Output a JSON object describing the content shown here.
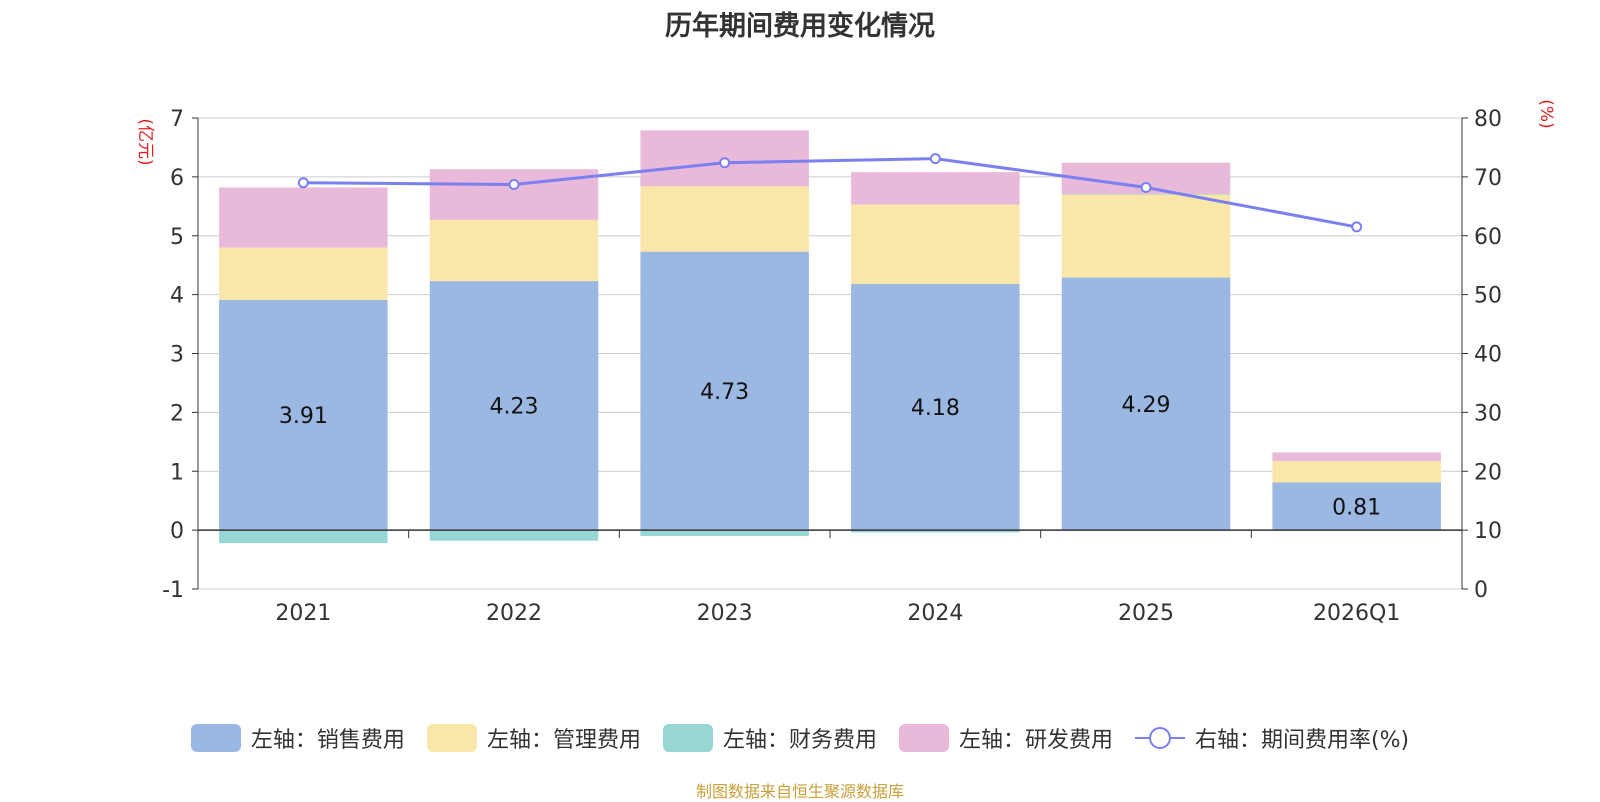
{
  "chart_data": {
    "type": "bar",
    "title": "历年期间费用变化情况",
    "categories": [
      "2021",
      "2022",
      "2023",
      "2024",
      "2025",
      "2026Q1"
    ],
    "left_axis": {
      "label": "(亿元)",
      "ylim": [
        -1,
        7
      ],
      "ticks": [
        -1,
        0,
        1,
        2,
        3,
        4,
        5,
        6,
        7
      ]
    },
    "right_axis": {
      "label": "(%)",
      "ylim": [
        0,
        80
      ],
      "ticks": [
        0,
        10,
        20,
        30,
        40,
        50,
        60,
        70,
        80
      ]
    },
    "series": [
      {
        "name": "销售费用",
        "legend": "左轴：销售费用",
        "axis": "left",
        "kind": "bar",
        "color": "#9bb8e2",
        "values": [
          3.91,
          4.23,
          4.73,
          4.18,
          4.29,
          0.81
        ],
        "show_labels": true,
        "labels": [
          "3.91",
          "4.23",
          "4.73",
          "4.18",
          "4.29",
          "0.81"
        ]
      },
      {
        "name": "管理费用",
        "legend": "左轴：管理费用",
        "axis": "left",
        "kind": "bar",
        "color": "#f8e7a8",
        "values": [
          0.89,
          1.04,
          1.11,
          1.35,
          1.41,
          0.36
        ]
      },
      {
        "name": "财务费用",
        "legend": "左轴：财务费用",
        "axis": "left",
        "kind": "bar",
        "color": "#98d5d5",
        "values": [
          -0.22,
          -0.18,
          -0.1,
          -0.04,
          0.01,
          0.0
        ]
      },
      {
        "name": "研发费用",
        "legend": "左轴：研发费用",
        "axis": "left",
        "kind": "bar",
        "color": "#e8b9d9",
        "values": [
          1.02,
          0.86,
          0.95,
          0.55,
          0.53,
          0.15
        ]
      },
      {
        "name": "期间费用率(%)",
        "legend": "右轴：期间费用率(%)",
        "axis": "right",
        "kind": "line",
        "color": "#7b7fef",
        "values": [
          69.0,
          68.7,
          72.4,
          73.1,
          68.2,
          61.5
        ]
      }
    ],
    "legend_position": "bottom",
    "grid": true
  },
  "source": "制图数据来自恒生聚源数据库"
}
